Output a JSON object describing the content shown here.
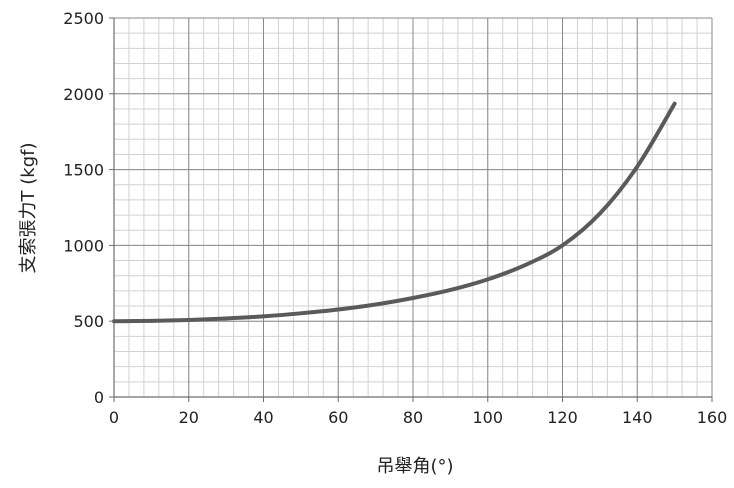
{
  "chart_data": {
    "type": "line",
    "title": "",
    "xlabel": "吊舉角(°)",
    "ylabel": "支索張力T (kgf)",
    "xlim": [
      0,
      160
    ],
    "ylim": [
      0,
      2500
    ],
    "x_ticks": [
      0,
      20,
      40,
      60,
      80,
      100,
      120,
      140,
      160
    ],
    "y_ticks": [
      0,
      500,
      1000,
      1500,
      2000,
      2500
    ],
    "x_tick_labels": [
      "0",
      "20",
      "40",
      "60",
      "80",
      "100",
      "120",
      "140",
      "160"
    ],
    "y_tick_labels": [
      "0",
      "500",
      "1000",
      "1500",
      "2000",
      "2500"
    ],
    "grid": true,
    "minor_grid": true,
    "legend": "none",
    "series": [
      {
        "color": "#5a5a5a",
        "x": [
          0,
          10,
          20,
          30,
          40,
          50,
          60,
          70,
          80,
          90,
          100,
          110,
          120,
          130,
          140,
          150
        ],
        "y": [
          500,
          502,
          508,
          518,
          532,
          552,
          577,
          610,
          653,
          706,
          776,
          870,
          1000,
          1210,
          1520,
          1935
        ]
      }
    ]
  }
}
